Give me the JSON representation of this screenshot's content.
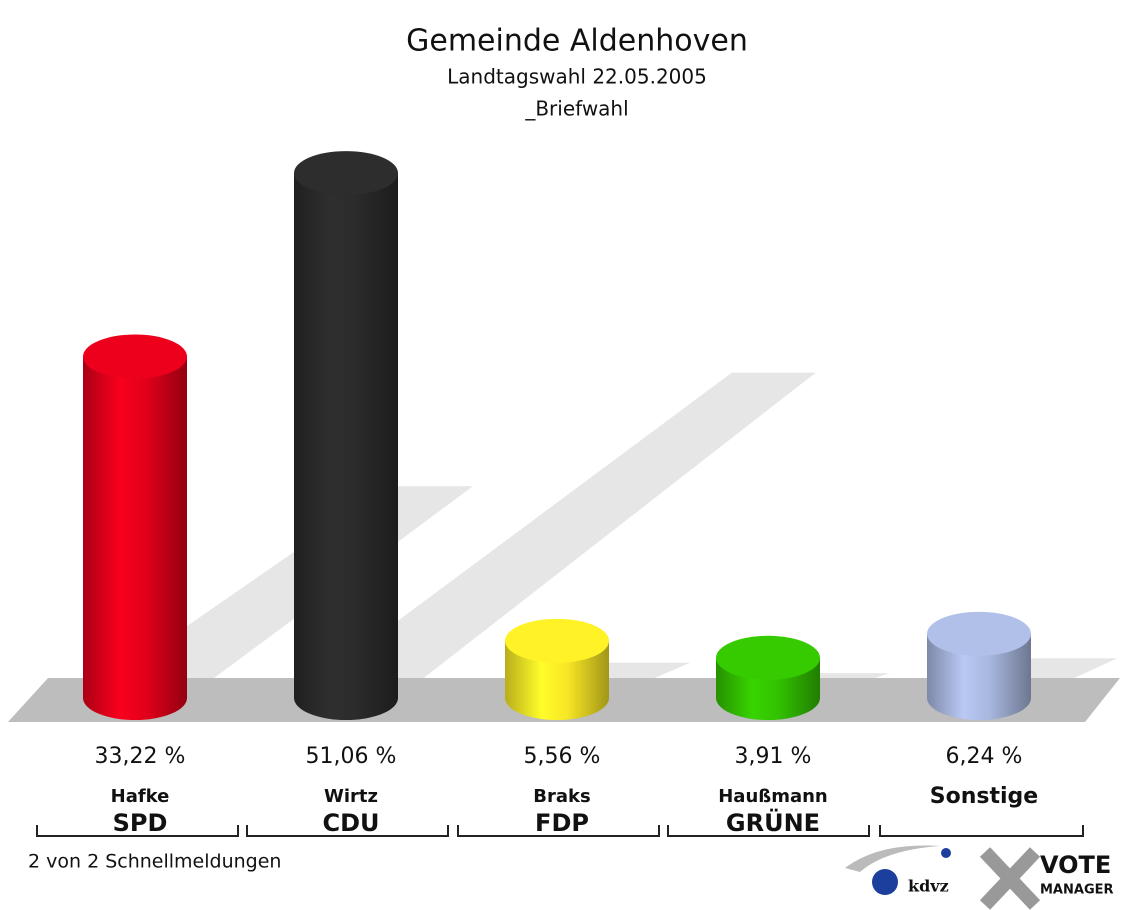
{
  "chart_data": {
    "type": "cylinder_bar",
    "title": "Gemeinde Aldenhoven",
    "subtitle": "Landtagswahl 22.05.2005",
    "subtitle2": "_Briefwahl",
    "categories": [
      "SPD",
      "CDU",
      "FDP",
      "GRÜNE",
      "Sonstige"
    ],
    "candidates": [
      "Hafke",
      "Wirtz",
      "Braks",
      "Haußmann",
      null
    ],
    "values": [
      33.22,
      51.06,
      5.56,
      3.91,
      6.24
    ],
    "value_labels": [
      "33,22 %",
      "51,06 %",
      "5,56 %",
      "3,91 %",
      "6,24 %"
    ],
    "colors": [
      "#e2001a",
      "#2b2b2b",
      "#f7e625",
      "#33c100",
      "#a8b7de"
    ],
    "footer": "2 von 2 Schnellmeldungen",
    "logo": {
      "left": "kdvz",
      "right_top": "VOTE",
      "right_bottom": "MANAGER"
    }
  }
}
